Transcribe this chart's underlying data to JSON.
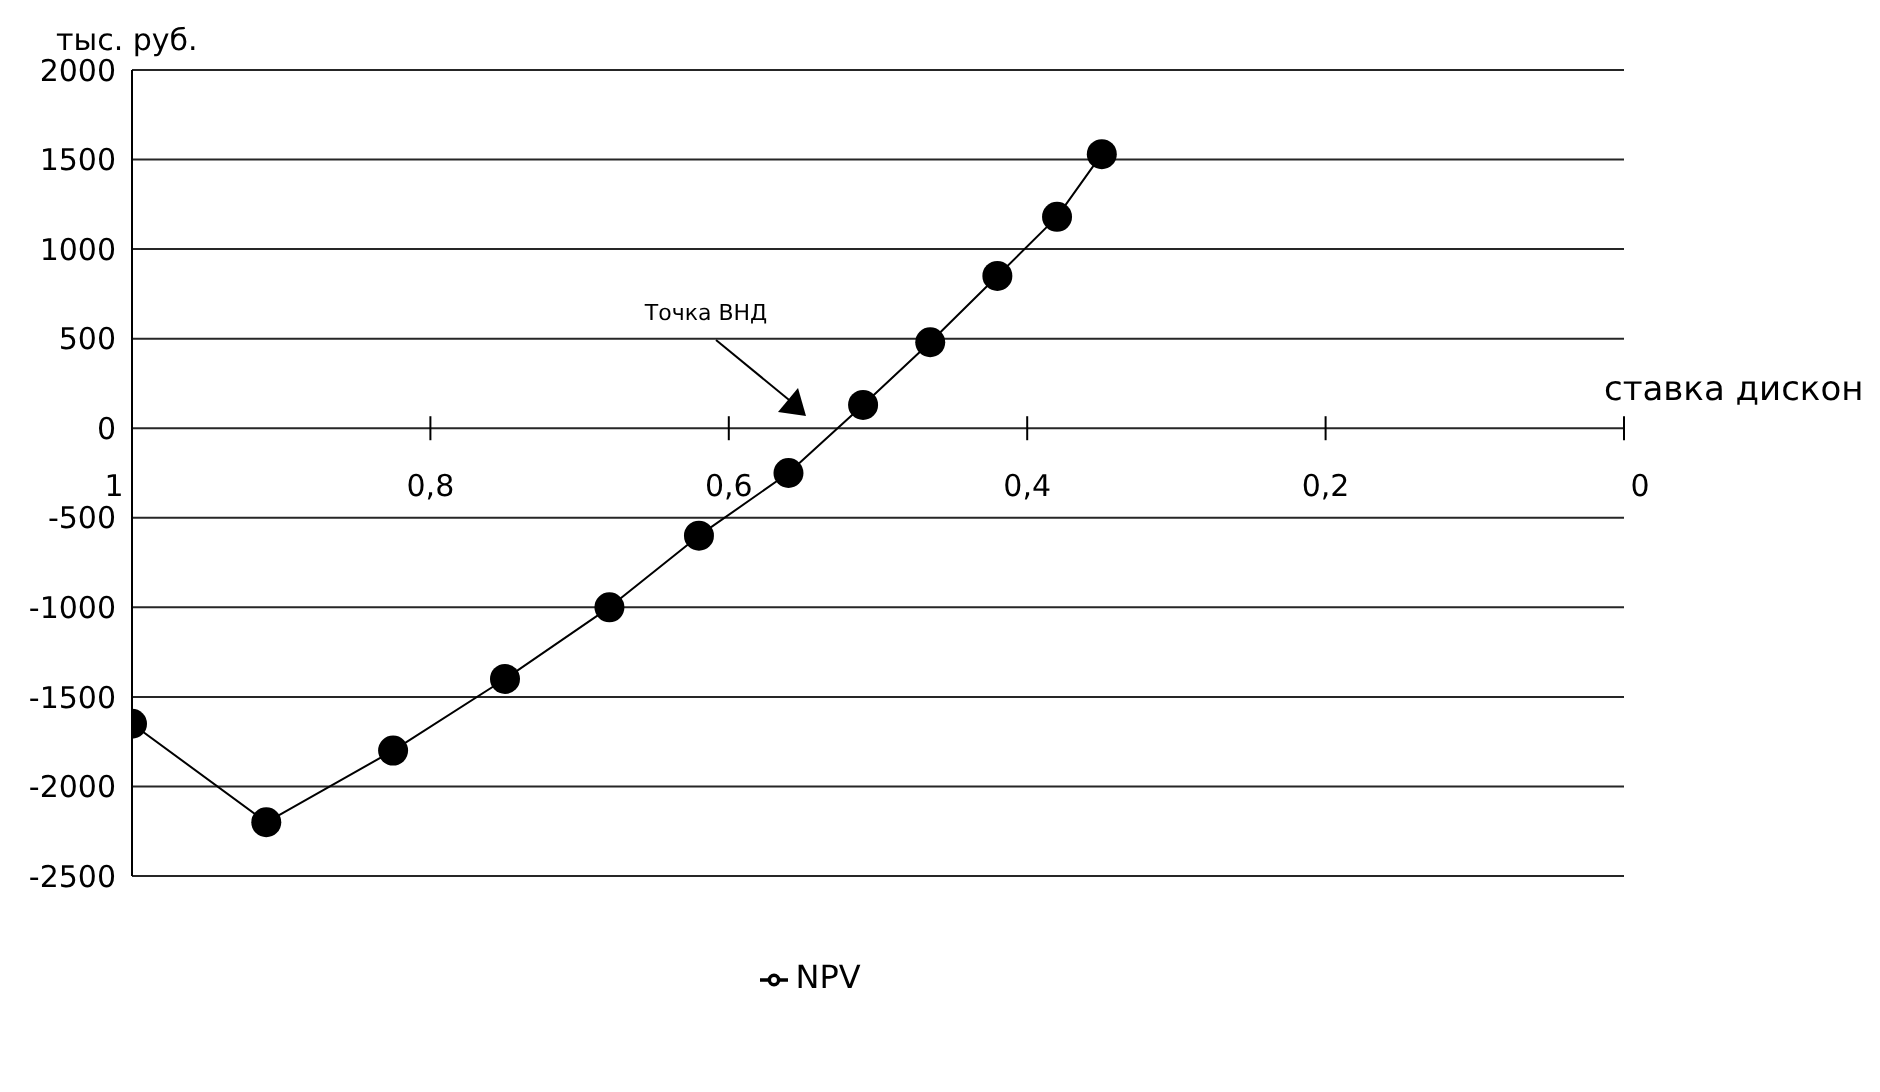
{
  "chart_data": {
    "type": "line",
    "xlabel": "ставка дискон",
    "ylabel": "тыс. руб.",
    "x": [
      1,
      0.91,
      0.825,
      0.75,
      0.68,
      0.62,
      0.56,
      0.51,
      0.465,
      0.42,
      0.38,
      0.35
    ],
    "series": [
      {
        "name": "NPV",
        "color": "#000000",
        "values": [
          -1650,
          -2200,
          -1800,
          -1400,
          -1000,
          -600,
          -250,
          130,
          480,
          850,
          1180,
          1530
        ]
      }
    ],
    "xlim": [
      1,
      0
    ],
    "xticks": [
      {
        "value": 1,
        "label": "1"
      },
      {
        "value": 0.8,
        "label": "0,8"
      },
      {
        "value": 0.6,
        "label": "0,6"
      },
      {
        "value": 0.4,
        "label": "0,4"
      },
      {
        "value": 0.2,
        "label": "0,2"
      },
      {
        "value": 0,
        "label": "0"
      }
    ],
    "ylim": [
      -2500,
      2000
    ],
    "yticks": [
      -2500,
      -2000,
      -1500,
      -1000,
      -500,
      0,
      500,
      1000,
      1500,
      2000
    ],
    "annotations": [
      "Точка ВНД"
    ],
    "grid": "y",
    "legend": "bottom",
    "marker": "circle",
    "line_style": "solid"
  }
}
